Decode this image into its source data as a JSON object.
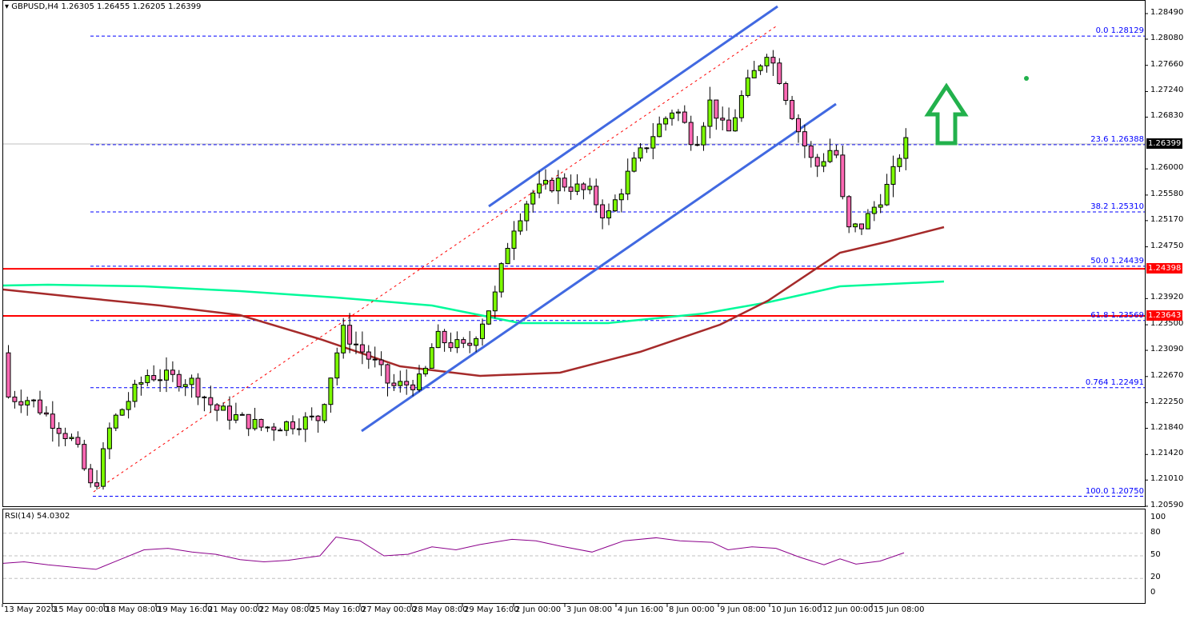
{
  "header": {
    "symbol": "GBPUSD,H4",
    "ohlc": "1.26305 1.26455 1.26205 1.26399",
    "title": "GBPUSD,H4  1.26305 1.26455 1.26205 1.26399"
  },
  "rsi": {
    "label": "RSI(14) 54.0302",
    "levels": [
      "100",
      "80",
      "50",
      "20",
      "0"
    ]
  },
  "price_axis": {
    "ticks": [
      "1.28490",
      "1.28080",
      "1.27660",
      "1.27240",
      "1.26830",
      "1.26000",
      "1.25580",
      "1.25170",
      "1.24750",
      "1.23920",
      "1.23500",
      "1.23090",
      "1.22670",
      "1.22250",
      "1.21840",
      "1.21420",
      "1.21010",
      "1.20590"
    ],
    "current_price": "1.26399",
    "red_levels": [
      "1.24398",
      "1.23643"
    ]
  },
  "fib_levels": [
    {
      "label": "0.0 1.28129"
    },
    {
      "label": "23.6 1.26388"
    },
    {
      "label": "38.2 1.25310"
    },
    {
      "label": "50.0 1.24439"
    },
    {
      "label": "61.8 1.23569"
    },
    {
      "label": "0.764 1.22491"
    },
    {
      "label": "100.0 1.20750"
    }
  ],
  "time_axis": [
    "13 May 2020",
    "15 May 00:00",
    "18 May 08:00",
    "19 May 16:00",
    "21 May 00:00",
    "22 May 08:00",
    "25 May 16:00",
    "27 May 00:00",
    "28 May 08:00",
    "29 May 16:00",
    "2 Jun 00:00",
    "3 Jun 08:00",
    "4 Jun 16:00",
    "8 Jun 00:00",
    "9 Jun 08:00",
    "10 Jun 16:00",
    "12 Jun 00:00",
    "15 Jun 08:00"
  ],
  "colors": {
    "bull": "#7CFC00",
    "bear": "#FF69B4",
    "fib": "#0000FF",
    "support": "#FF0000",
    "ma_slow": "#A52A2A",
    "ma_fast": "#00FA9A",
    "channel": "#4169E1",
    "arrow": "#22B14C"
  },
  "chart_data": {
    "type": "candlestick",
    "title": "GBPUSD,H4",
    "xlabel": "",
    "ylabel": "",
    "ylim": [
      1.2059,
      1.2849
    ],
    "x_ticks": [
      "13 May 2020",
      "15 May 00:00",
      "18 May 08:00",
      "19 May 16:00",
      "21 May 00:00",
      "22 May 08:00",
      "25 May 16:00",
      "27 May 00:00",
      "28 May 08:00",
      "29 May 16:00",
      "2 Jun 00:00",
      "3 Jun 08:00",
      "4 Jun 16:00",
      "8 Jun 00:00",
      "9 Jun 08:00",
      "10 Jun 16:00",
      "12 Jun 00:00",
      "15 Jun 08:00"
    ],
    "last": {
      "open": 1.26305,
      "high": 1.26455,
      "low": 1.26205,
      "close": 1.26399
    },
    "fibonacci": {
      "0.0": 1.28129,
      "23.6": 1.26388,
      "38.2": 1.2531,
      "50.0": 1.24439,
      "61.8": 1.23569,
      "76.4": 1.22491,
      "100.0": 1.2075
    },
    "horizontal_lines": [
      1.24398,
      1.23643
    ],
    "rising_channel": {
      "upper": [
        [
          611,
          258
        ],
        [
          972,
          8
        ]
      ],
      "lower": [
        [
          452,
          539
        ],
        [
          1045,
          130
        ]
      ]
    },
    "indicator": {
      "name": "RSI(14)",
      "value": 54.0302,
      "ylim": [
        0,
        100
      ],
      "levels": [
        20,
        50,
        80
      ]
    },
    "annotation": "green up arrow (bullish)"
  }
}
